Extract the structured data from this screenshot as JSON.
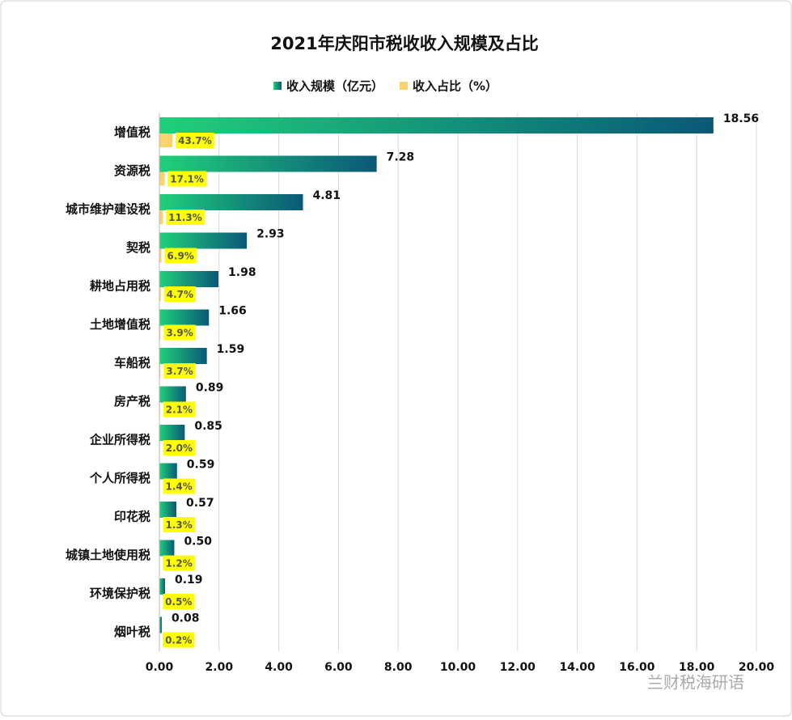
{
  "chart_data": {
    "type": "bar",
    "orientation": "horizontal",
    "title": "2021年庆阳市税收收入规模及占比",
    "watermark": "兰财税海研语",
    "categories": [
      "增值税",
      "资源税",
      "城市维护建设税",
      "契税",
      "耕地占用税",
      "土地增值税",
      "车船税",
      "房产税",
      "企业所得税",
      "个人所得税",
      "印花税",
      "城镇土地使用税",
      "环境保护税",
      "烟叶税"
    ],
    "series": [
      {
        "name": "收入规模（亿元）",
        "color": "#12a571",
        "gradient": [
          "#20d07a",
          "#0a5878"
        ],
        "values": [
          18.56,
          7.28,
          4.81,
          2.93,
          1.98,
          1.66,
          1.59,
          0.89,
          0.85,
          0.59,
          0.57,
          0.5,
          0.19,
          0.08
        ],
        "value_labels": [
          "18.56",
          "7.28",
          "4.81",
          "2.93",
          "1.98",
          "1.66",
          "1.59",
          "0.89",
          "0.85",
          "0.59",
          "0.57",
          "0.50",
          "0.19",
          "0.08"
        ]
      },
      {
        "name": "收入占比（%）",
        "color": "#fbd36e",
        "label_background": "#ffff00",
        "values": [
          0.437,
          0.171,
          0.113,
          0.069,
          0.047,
          0.039,
          0.037,
          0.021,
          0.02,
          0.014,
          0.013,
          0.012,
          0.005,
          0.002
        ],
        "value_labels": [
          "43.7%",
          "17.1%",
          "11.3%",
          "6.9%",
          "4.7%",
          "3.9%",
          "3.7%",
          "2.1%",
          "2.0%",
          "1.4%",
          "1.3%",
          "1.2%",
          "0.5%",
          "0.2%"
        ]
      }
    ],
    "xlim": [
      0,
      20
    ],
    "xticks": [
      {
        "value": 0,
        "label": "0.00"
      },
      {
        "value": 2,
        "label": "2.00"
      },
      {
        "value": 4,
        "label": "4.00"
      },
      {
        "value": 6,
        "label": "6.00"
      },
      {
        "value": 8,
        "label": "8.00"
      },
      {
        "value": 10,
        "label": "10.00"
      },
      {
        "value": 12,
        "label": "12.00"
      },
      {
        "value": 14,
        "label": "14.00"
      },
      {
        "value": 16,
        "label": "16.00"
      },
      {
        "value": 18,
        "label": "18.00"
      },
      {
        "value": 20,
        "label": "20.00"
      }
    ],
    "grid": true,
    "legend": "top"
  }
}
